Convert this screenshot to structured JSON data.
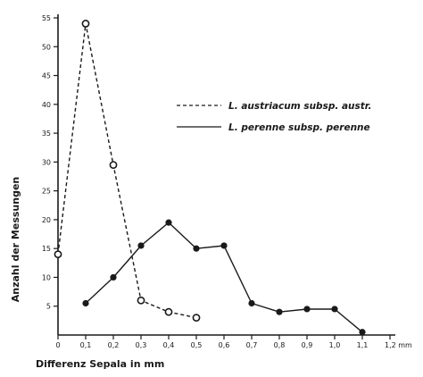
{
  "chart_data": {
    "type": "line",
    "xlabel": "Differenz Sepala in mm",
    "ylabel": "Anzahl der Messungen",
    "xlim": [
      0,
      1.2
    ],
    "ylim": [
      0,
      55
    ],
    "x_ticks": [
      0,
      0.1,
      0.2,
      0.3,
      0.4,
      0.5,
      0.6,
      0.7,
      0.8,
      0.9,
      1.0,
      1.1,
      1.2
    ],
    "x_tick_labels": [
      "0",
      "0,1",
      "0,2",
      "0,3",
      "0,4",
      "0,5",
      "0,6",
      "0,7",
      "0,8",
      "0,9",
      "1,0",
      "1,1",
      "1,2 mm"
    ],
    "y_ticks": [
      5,
      10,
      15,
      20,
      25,
      30,
      35,
      40,
      45,
      50,
      55
    ],
    "y_tick_labels": [
      "5",
      "10",
      "15",
      "20",
      "25",
      "30",
      "35",
      "40",
      "45",
      "50",
      "55"
    ],
    "grid": false,
    "legend_position": "right",
    "series": [
      {
        "name": "L. austriacum subsp. austr.",
        "style": "dashed",
        "marker": "open-circle",
        "x": [
          0,
          0.1,
          0.2,
          0.3,
          0.4,
          0.5
        ],
        "y": [
          14,
          54,
          29.5,
          6,
          4,
          3
        ]
      },
      {
        "name": "L. perenne subsp. perenne",
        "style": "solid",
        "marker": "filled-circle",
        "x": [
          0.1,
          0.2,
          0.3,
          0.4,
          0.5,
          0.6,
          0.7,
          0.8,
          0.9,
          1.0,
          1.1
        ],
        "y": [
          5.5,
          10,
          15.5,
          19.5,
          15,
          15.5,
          5.5,
          4,
          4.5,
          4.5,
          0.5
        ]
      }
    ],
    "colors": {
      "ink": "#1a1a1a",
      "background": "#ffffff"
    }
  }
}
